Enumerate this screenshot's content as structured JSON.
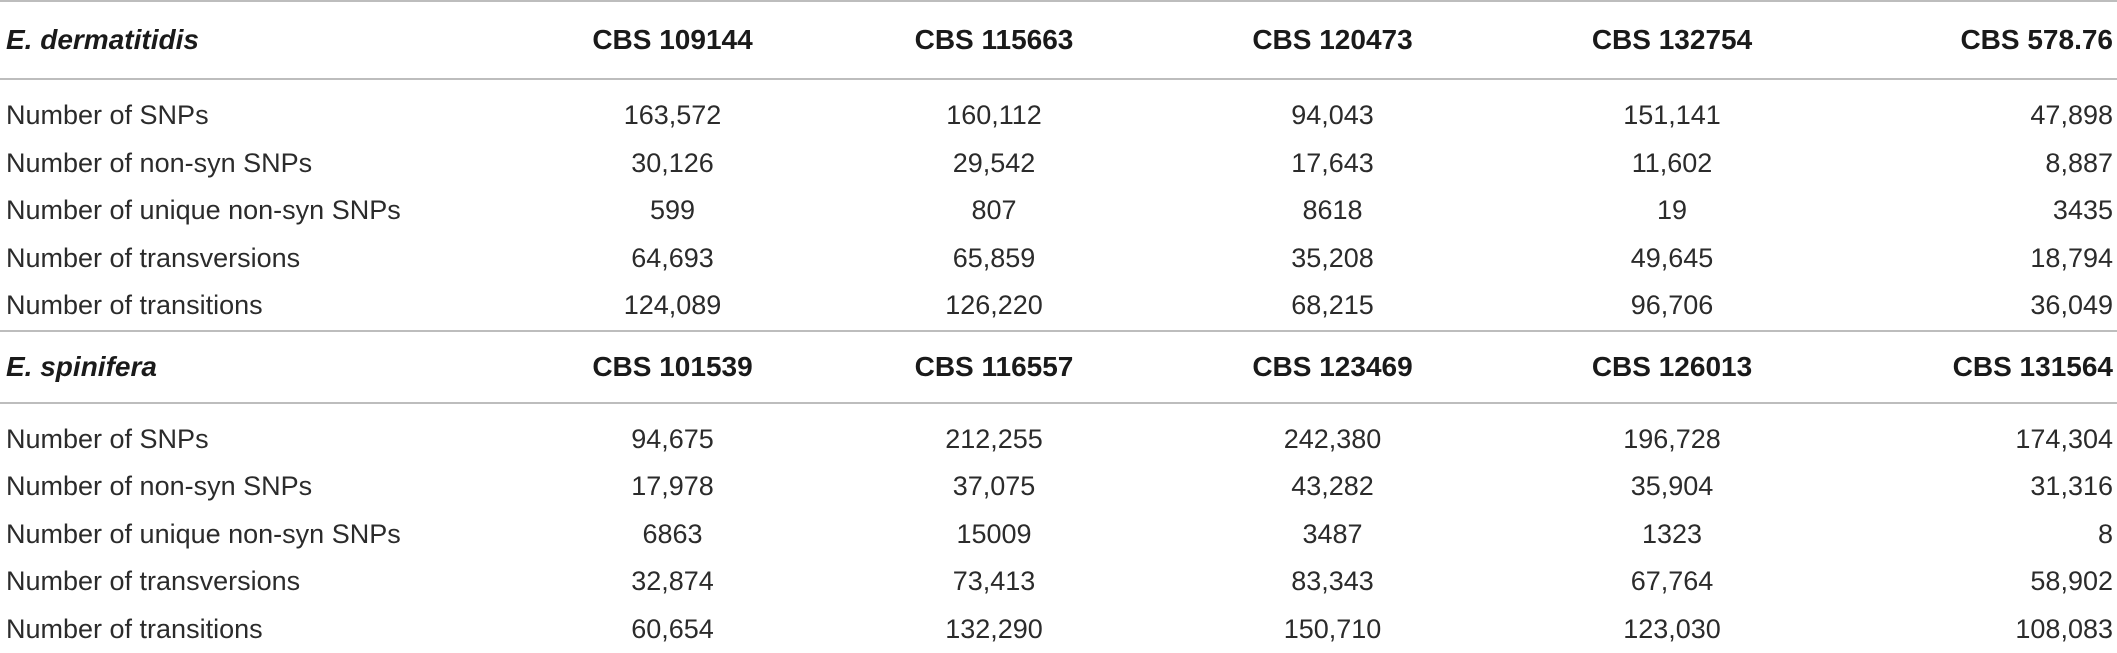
{
  "table": {
    "groups": [
      {
        "species": "E. dermatitidis",
        "strains": [
          "CBS 109144",
          "CBS 115663",
          "CBS 120473",
          "CBS 132754",
          "CBS 578.76"
        ],
        "rows": [
          {
            "label": "Number of SNPs",
            "values": [
              "163,572",
              "160,112",
              "94,043",
              "151,141",
              "47,898"
            ]
          },
          {
            "label": "Number of non-syn SNPs",
            "values": [
              "30,126",
              "29,542",
              "17,643",
              "11,602",
              "8,887"
            ]
          },
          {
            "label": "Number of unique non-syn SNPs",
            "values": [
              "599",
              "807",
              "8618",
              "19",
              "3435"
            ]
          },
          {
            "label": "Number of transversions",
            "values": [
              "64,693",
              "65,859",
              "35,208",
              "49,645",
              "18,794"
            ]
          },
          {
            "label": "Number of transitions",
            "values": [
              "124,089",
              "126,220",
              "68,215",
              "96,706",
              "36,049"
            ]
          }
        ]
      },
      {
        "species": "E. spinifera",
        "strains": [
          "CBS 101539",
          "CBS 116557",
          "CBS 123469",
          "CBS 126013",
          "CBS 131564"
        ],
        "rows": [
          {
            "label": "Number of SNPs",
            "values": [
              "94,675",
              "212,255",
              "242,380",
              "196,728",
              "174,304"
            ]
          },
          {
            "label": "Number of non-syn SNPs",
            "values": [
              "17,978",
              "37,075",
              "43,282",
              "35,904",
              "31,316"
            ]
          },
          {
            "label": "Number of unique non-syn SNPs",
            "values": [
              "6863",
              "15009",
              "3487",
              "1323",
              "8"
            ]
          },
          {
            "label": "Number of transversions",
            "values": [
              "32,874",
              "73,413",
              "83,343",
              "67,764",
              "58,902"
            ]
          },
          {
            "label": "Number of transitions",
            "values": [
              "60,654",
              "132,290",
              "150,710",
              "123,030",
              "108,083"
            ]
          }
        ]
      }
    ]
  }
}
